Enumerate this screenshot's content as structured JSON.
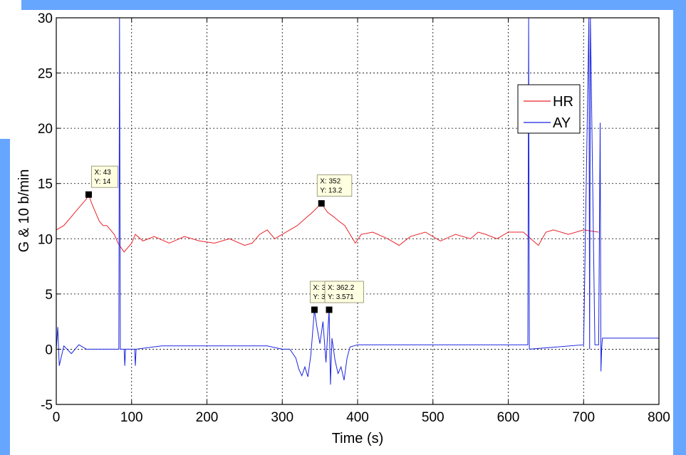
{
  "colors": {
    "frame": "#66a6ff",
    "hr_series": "#e8232a",
    "ay_series": "#1b25e0",
    "datatip_bg": "#ffffe1",
    "grid": "#000000"
  },
  "chart_data": {
    "type": "line",
    "title": "",
    "xlabel": "Time (s)",
    "ylabel": "G & 10 b/min",
    "xlim": [
      0,
      800
    ],
    "ylim": [
      -5,
      30
    ],
    "xticks": [
      0,
      100,
      200,
      300,
      400,
      500,
      600,
      700,
      800
    ],
    "yticks": [
      -5,
      0,
      5,
      10,
      15,
      20,
      25,
      30
    ],
    "grid": true,
    "legend_placement": "upper-right",
    "series": [
      {
        "name": "HR",
        "color": "#e8232a",
        "x": [
          0,
          10,
          15,
          20,
          25,
          30,
          35,
          40,
          43,
          47,
          52,
          57,
          62,
          67,
          72,
          77,
          82,
          86,
          90,
          95,
          100,
          105,
          115,
          130,
          150,
          170,
          190,
          210,
          230,
          250,
          260,
          270,
          280,
          290,
          300,
          310,
          320,
          330,
          340,
          352,
          360,
          368,
          375,
          383,
          390,
          397,
          405,
          420,
          440,
          455,
          470,
          490,
          510,
          530,
          550,
          560,
          570,
          585,
          600,
          620,
          640,
          650,
          660,
          680,
          700,
          720
        ],
        "y": [
          10.8,
          11.2,
          11.6,
          12.0,
          12.4,
          12.8,
          13.2,
          13.6,
          14.0,
          13.2,
          12.4,
          11.6,
          11.2,
          11.2,
          10.8,
          10.4,
          9.6,
          9.2,
          8.8,
          9.2,
          9.6,
          10.4,
          9.8,
          10.2,
          9.6,
          10.2,
          9.8,
          9.6,
          10.0,
          9.4,
          9.6,
          10.4,
          10.8,
          10.0,
          10.4,
          10.8,
          11.2,
          11.8,
          12.4,
          13.2,
          12.4,
          12.0,
          11.6,
          11.2,
          10.4,
          9.6,
          10.4,
          10.6,
          10.0,
          9.4,
          10.2,
          10.6,
          9.8,
          10.4,
          10.0,
          10.6,
          10.4,
          10.0,
          10.6,
          10.6,
          9.4,
          10.6,
          10.8,
          10.4,
          10.8,
          10.6
        ]
      },
      {
        "name": "AY",
        "color": "#1b25e0",
        "x": [
          0,
          2,
          4,
          10,
          20,
          30,
          40,
          70,
          83,
          84,
          85,
          90,
          91,
          92,
          100,
          104,
          105,
          106,
          140,
          220,
          280,
          300,
          310,
          318,
          322,
          326,
          330,
          334,
          338,
          342.7,
          346,
          350,
          354,
          358,
          362.2,
          364,
          366,
          370,
          374,
          378,
          382,
          386,
          390,
          400,
          500,
          600,
          626,
          627,
          628,
          700,
          707,
          708,
          709,
          715,
          720,
          722,
          723,
          724,
          725,
          760,
          800
        ],
        "y": [
          0,
          2,
          -1.5,
          0.3,
          -0.4,
          0.4,
          0,
          0,
          0,
          30,
          0,
          0,
          -1.5,
          0,
          0,
          0,
          -1.5,
          0,
          0.3,
          0.3,
          0.3,
          0,
          0,
          -0.8,
          -1.8,
          -2.4,
          -1.6,
          -2.5,
          -0.5,
          3.571,
          2.0,
          0.5,
          2.5,
          -1.2,
          3.571,
          -3.2,
          1.0,
          -1.0,
          -2.2,
          -1.6,
          -2.8,
          -0.8,
          0.2,
          0.4,
          0.4,
          0.4,
          0.4,
          30,
          0,
          0.4,
          30,
          0,
          30,
          0.4,
          0.4,
          20.5,
          -2.0,
          0,
          1.0,
          1.0,
          1.0
        ]
      }
    ],
    "annotations": [
      {
        "x": 43,
        "y": 14,
        "line1": "X: 43",
        "line2": "Y: 14"
      },
      {
        "x": 352,
        "y": 13.2,
        "line1": "X: 352",
        "line2": "Y: 13.2"
      },
      {
        "x": 342.7,
        "y": 3.571,
        "line1": "X: 342.7",
        "line2": "Y: 3.571"
      },
      {
        "x": 362.2,
        "y": 3.571,
        "line1": "X: 362.2",
        "line2": "Y: 3.571"
      }
    ]
  }
}
